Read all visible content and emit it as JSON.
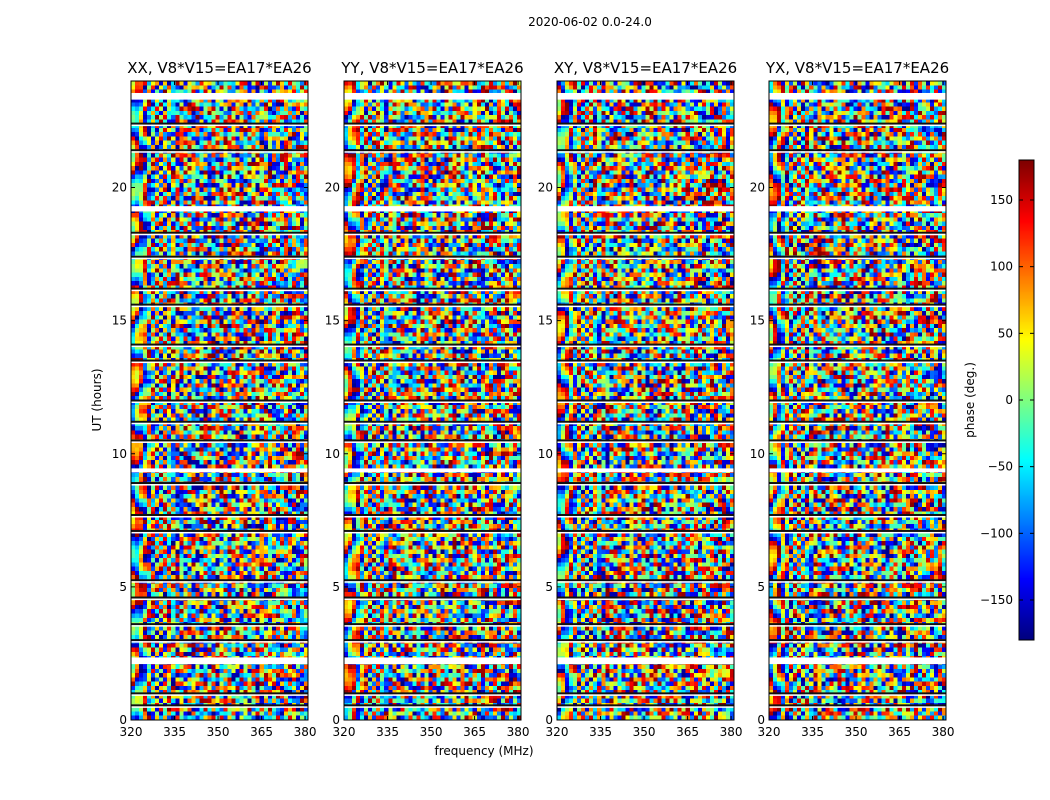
{
  "chart_data": {
    "type": "heatmap",
    "title": "2020-06-02 0.0-24.0",
    "xlabel": "frequency (MHz)",
    "ylabel": "UT (hours)",
    "xlim": [
      320,
      381
    ],
    "ylim": [
      0,
      24
    ],
    "xticks": [
      320,
      335,
      350,
      365,
      380
    ],
    "yticks": [
      0,
      5,
      10,
      15,
      20
    ],
    "colorscale": "jet",
    "colorbar": {
      "label": "phase (deg.)",
      "range": [
        -180,
        180
      ],
      "ticks": [
        -150,
        -100,
        -50,
        0,
        50,
        100,
        150
      ]
    },
    "panels": [
      {
        "title": "XX, V8*V15=EA17*EA26"
      },
      {
        "title": "YY, V8*V15=EA17*EA26"
      },
      {
        "title": "XY, V8*V15=EA17*EA26"
      },
      {
        "title": "YX, V8*V15=EA17*EA26"
      }
    ],
    "gaps_ut_hours": [
      [
        2.1,
        2.35
      ],
      [
        9.3,
        9.45
      ],
      [
        19.1,
        19.3
      ],
      [
        23.3,
        23.55
      ]
    ],
    "flagged_bands_ut_hours": [
      0.55,
      1.0,
      3.0,
      3.6,
      4.6,
      5.25,
      7.1,
      7.7,
      8.9,
      10.5,
      11.2,
      12.0,
      13.5,
      14.1,
      15.6,
      16.2,
      17.4,
      18.3,
      21.4,
      22.4
    ]
  }
}
